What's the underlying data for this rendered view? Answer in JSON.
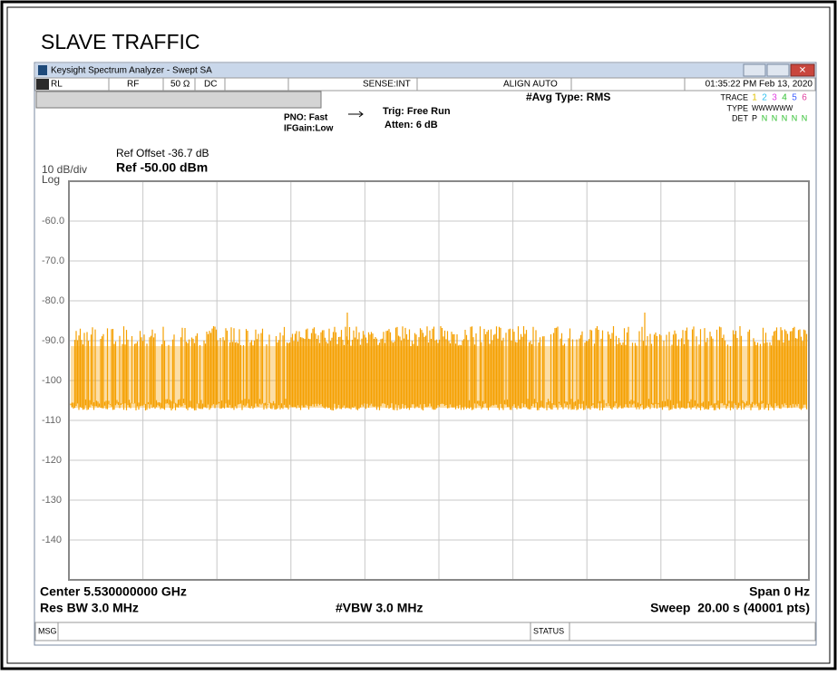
{
  "header": {
    "title": "SLAVE TRAFFIC"
  },
  "window": {
    "title": "Keysight Spectrum Analyzer - Swept SA"
  },
  "status_bar": {
    "rl": "RL",
    "rf": "RF",
    "impedance": "50 Ω",
    "coupling": "DC",
    "sense": "SENSE:INT",
    "align": "ALIGN AUTO",
    "datetime": "01:35:22 PM Feb 13, 2020"
  },
  "settings": {
    "avg_type": "#Avg Type: RMS",
    "pno": "PNO: Fast",
    "ifgain": "IFGain:Low",
    "trig": "Trig: Free Run",
    "atten": "Atten: 6 dB"
  },
  "trace_panel": {
    "trace_label": "TRACE",
    "traces": [
      "1",
      "2",
      "3",
      "4",
      "5",
      "6"
    ],
    "type_label": "TYPE",
    "types": "WWWWWW",
    "det_label": "DET",
    "dets": [
      "P",
      "N",
      "N",
      "N",
      "N",
      "N"
    ]
  },
  "reference": {
    "offset": "Ref Offset -36.7 dB",
    "level": "Ref -50.00 dBm",
    "scale": "10 dB/div",
    "mode": "Log"
  },
  "y_labels": [
    "-60.0",
    "-70.0",
    "-80.0",
    "-90.0",
    "-100",
    "-110",
    "-120",
    "-130",
    "-140"
  ],
  "footer": {
    "center": "Center 5.530000000 GHz",
    "span": "Span 0 Hz",
    "rbw": "Res BW 3.0 MHz",
    "vbw": "#VBW 3.0 MHz",
    "sweep": "Sweep  20.00 s (40001 pts)",
    "msg": "MSG",
    "status": "STATUS"
  }
}
